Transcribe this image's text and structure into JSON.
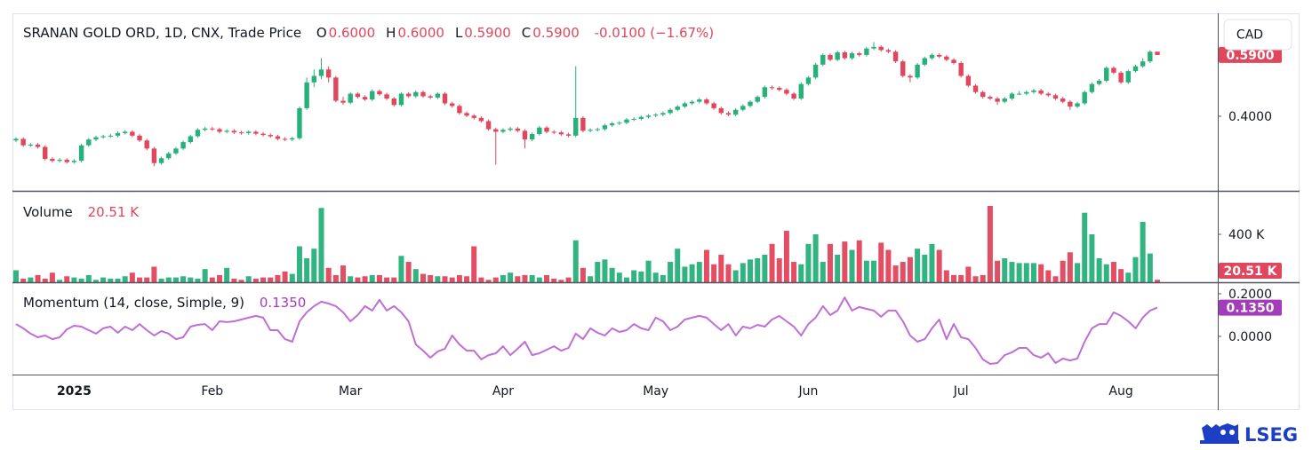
{
  "header": {
    "title": "SRANAN GOLD ORD, 1D, CNX, Trade Price",
    "ohlc": [
      {
        "key": "O",
        "value": "0.6000"
      },
      {
        "key": "H",
        "value": "0.6000"
      },
      {
        "key": "L",
        "value": "0.5900"
      },
      {
        "key": "C",
        "value": "0.5900"
      }
    ],
    "change": "-0.0100 (−1.67%)"
  },
  "currency": "CAD",
  "logo": "LSEG",
  "chart_data": [
    {
      "type": "candlestick",
      "up_color": "#26b07a",
      "down_color": "#e0465c",
      "categories": [
        null,
        null,
        null,
        null,
        null,
        null,
        null,
        null,
        "2025",
        null,
        null,
        null,
        null,
        null,
        null,
        null,
        null,
        null,
        null,
        null,
        null,
        null,
        null,
        null,
        null,
        null,
        null,
        "Feb",
        null,
        null,
        null,
        null,
        null,
        null,
        null,
        null,
        null,
        null,
        null,
        null,
        null,
        null,
        null,
        null,
        null,
        null,
        "Mar",
        null,
        null,
        null,
        null,
        null,
        null,
        null,
        null,
        null,
        null,
        null,
        null,
        null,
        null,
        null,
        null,
        null,
        null,
        null,
        null,
        "Apr",
        null,
        null,
        null,
        null,
        null,
        null,
        null,
        null,
        null,
        null,
        null,
        null,
        null,
        null,
        null,
        null,
        null,
        null,
        null,
        null,
        "May",
        null,
        null,
        null,
        null,
        null,
        null,
        null,
        null,
        null,
        null,
        null,
        null,
        null,
        null,
        null,
        null,
        null,
        null,
        null,
        null,
        "Jun",
        null,
        null,
        null,
        null,
        null,
        null,
        null,
        null,
        null,
        null,
        null,
        null,
        null,
        null,
        null,
        null,
        null,
        null,
        null,
        null,
        "Jul",
        null,
        null,
        null,
        null,
        null,
        null,
        null,
        null,
        null,
        null,
        null,
        null,
        null,
        null,
        null,
        null,
        null,
        null,
        null,
        null,
        null,
        "Aug",
        null,
        null,
        null,
        null,
        null
      ],
      "open": [
        0.325,
        0.33,
        0.31,
        0.312,
        0.305,
        0.268,
        0.262,
        0.265,
        0.258,
        0.262,
        0.31,
        0.328,
        0.335,
        0.338,
        0.34,
        0.348,
        0.352,
        0.34,
        0.325,
        0.3,
        0.255,
        0.27,
        0.285,
        0.3,
        0.32,
        0.338,
        0.358,
        0.362,
        0.36,
        0.352,
        0.355,
        0.35,
        0.348,
        0.352,
        0.346,
        0.342,
        0.338,
        0.33,
        0.328,
        0.332,
        0.425,
        0.505,
        0.525,
        0.545,
        0.52,
        0.448,
        0.442,
        0.47,
        0.46,
        0.452,
        0.478,
        0.468,
        0.455,
        0.435,
        0.47,
        0.462,
        0.475,
        0.462,
        0.458,
        0.47,
        0.44,
        0.432,
        0.41,
        0.402,
        0.395,
        0.385,
        0.36,
        0.352,
        0.358,
        0.362,
        0.355,
        0.328,
        0.345,
        0.365,
        0.352,
        0.35,
        0.344,
        0.34,
        0.395,
        0.355,
        0.358,
        0.36,
        0.372,
        0.378,
        0.38,
        0.39,
        0.392,
        0.398,
        0.402,
        0.405,
        0.41,
        0.42,
        0.43,
        0.44,
        0.445,
        0.452,
        0.44,
        0.425,
        0.41,
        0.405,
        0.42,
        0.432,
        0.445,
        0.46,
        0.49,
        0.488,
        0.482,
        0.47,
        0.455,
        0.5,
        0.52,
        0.56,
        0.59,
        0.575,
        0.598,
        0.58,
        0.595,
        0.59,
        0.61,
        0.615,
        0.605,
        0.6,
        0.57,
        0.525,
        0.52,
        0.56,
        0.58,
        0.59,
        0.585,
        0.575,
        0.565,
        0.525,
        0.495,
        0.475,
        0.46,
        0.455,
        0.445,
        0.455,
        0.47,
        0.47,
        0.475,
        0.48,
        0.47,
        0.465,
        0.455,
        0.445,
        0.43,
        0.44,
        0.475,
        0.5,
        0.51,
        0.55,
        0.535,
        0.505,
        0.54,
        0.555,
        0.57,
        0.6
      ],
      "high": [
        0.335,
        0.335,
        0.317,
        0.317,
        0.31,
        0.273,
        0.27,
        0.27,
        0.267,
        0.315,
        0.333,
        0.34,
        0.343,
        0.345,
        0.353,
        0.357,
        0.357,
        0.345,
        0.33,
        0.305,
        0.275,
        0.29,
        0.305,
        0.325,
        0.343,
        0.363,
        0.367,
        0.367,
        0.365,
        0.36,
        0.36,
        0.355,
        0.357,
        0.357,
        0.351,
        0.347,
        0.343,
        0.335,
        0.337,
        0.43,
        0.52,
        0.545,
        0.58,
        0.555,
        0.525,
        0.46,
        0.475,
        0.475,
        0.465,
        0.483,
        0.483,
        0.473,
        0.46,
        0.475,
        0.475,
        0.48,
        0.48,
        0.467,
        0.475,
        0.475,
        0.445,
        0.437,
        0.415,
        0.407,
        0.4,
        0.39,
        0.365,
        0.363,
        0.367,
        0.367,
        0.36,
        0.35,
        0.37,
        0.37,
        0.357,
        0.355,
        0.349,
        0.555,
        0.4,
        0.363,
        0.365,
        0.377,
        0.383,
        0.385,
        0.395,
        0.397,
        0.403,
        0.407,
        0.41,
        0.415,
        0.425,
        0.435,
        0.445,
        0.45,
        0.457,
        0.457,
        0.445,
        0.43,
        0.415,
        0.425,
        0.437,
        0.45,
        0.465,
        0.495,
        0.495,
        0.493,
        0.487,
        0.475,
        0.505,
        0.525,
        0.565,
        0.595,
        0.595,
        0.603,
        0.603,
        0.6,
        0.6,
        0.615,
        0.63,
        0.62,
        0.61,
        0.605,
        0.575,
        0.53,
        0.565,
        0.585,
        0.595,
        0.595,
        0.59,
        0.58,
        0.57,
        0.53,
        0.5,
        0.48,
        0.465,
        0.46,
        0.46,
        0.475,
        0.478,
        0.48,
        0.485,
        0.485,
        0.475,
        0.47,
        0.46,
        0.45,
        0.445,
        0.48,
        0.505,
        0.515,
        0.555,
        0.555,
        0.54,
        0.545,
        0.56,
        0.58,
        0.605,
        0.6
      ],
      "low": [
        0.32,
        0.305,
        0.305,
        0.3,
        0.263,
        0.257,
        0.257,
        0.253,
        0.253,
        0.257,
        0.305,
        0.323,
        0.33,
        0.333,
        0.335,
        0.343,
        0.335,
        0.32,
        0.295,
        0.245,
        0.25,
        0.265,
        0.28,
        0.295,
        0.315,
        0.333,
        0.353,
        0.355,
        0.347,
        0.347,
        0.345,
        0.343,
        0.343,
        0.341,
        0.337,
        0.333,
        0.325,
        0.323,
        0.323,
        0.327,
        0.42,
        0.49,
        0.515,
        0.505,
        0.443,
        0.435,
        0.437,
        0.455,
        0.447,
        0.447,
        0.463,
        0.45,
        0.43,
        0.43,
        0.457,
        0.457,
        0.457,
        0.453,
        0.453,
        0.435,
        0.427,
        0.405,
        0.397,
        0.39,
        0.38,
        0.355,
        0.25,
        0.347,
        0.353,
        0.35,
        0.3,
        0.323,
        0.34,
        0.347,
        0.345,
        0.339,
        0.335,
        0.335,
        0.35,
        0.35,
        0.353,
        0.355,
        0.367,
        0.373,
        0.375,
        0.385,
        0.387,
        0.393,
        0.397,
        0.4,
        0.405,
        0.415,
        0.425,
        0.435,
        0.44,
        0.435,
        0.42,
        0.405,
        0.4,
        0.4,
        0.415,
        0.427,
        0.44,
        0.455,
        0.483,
        0.477,
        0.465,
        0.45,
        0.45,
        0.495,
        0.515,
        0.555,
        0.57,
        0.57,
        0.575,
        0.575,
        0.585,
        0.585,
        0.605,
        0.6,
        0.595,
        0.565,
        0.52,
        0.505,
        0.515,
        0.555,
        0.575,
        0.58,
        0.57,
        0.56,
        0.52,
        0.49,
        0.47,
        0.455,
        0.45,
        0.435,
        0.44,
        0.45,
        0.465,
        0.465,
        0.47,
        0.465,
        0.46,
        0.45,
        0.44,
        0.42,
        0.425,
        0.435,
        0.47,
        0.495,
        0.505,
        0.53,
        0.5,
        0.5,
        0.535,
        0.55,
        0.565,
        0.59
      ],
      "close": [
        0.33,
        0.31,
        0.312,
        0.305,
        0.268,
        0.262,
        0.265,
        0.258,
        0.262,
        0.31,
        0.328,
        0.335,
        0.338,
        0.34,
        0.348,
        0.352,
        0.34,
        0.325,
        0.3,
        0.255,
        0.27,
        0.285,
        0.3,
        0.32,
        0.338,
        0.358,
        0.362,
        0.36,
        0.352,
        0.355,
        0.35,
        0.348,
        0.352,
        0.346,
        0.342,
        0.338,
        0.33,
        0.328,
        0.332,
        0.425,
        0.505,
        0.525,
        0.545,
        0.52,
        0.448,
        0.442,
        0.47,
        0.46,
        0.452,
        0.478,
        0.468,
        0.455,
        0.435,
        0.47,
        0.462,
        0.475,
        0.462,
        0.458,
        0.47,
        0.44,
        0.432,
        0.41,
        0.402,
        0.395,
        0.385,
        0.36,
        0.352,
        0.358,
        0.362,
        0.355,
        0.328,
        0.345,
        0.365,
        0.352,
        0.35,
        0.344,
        0.34,
        0.395,
        0.355,
        0.358,
        0.36,
        0.372,
        0.378,
        0.38,
        0.39,
        0.392,
        0.398,
        0.402,
        0.405,
        0.41,
        0.42,
        0.43,
        0.44,
        0.445,
        0.452,
        0.44,
        0.425,
        0.41,
        0.405,
        0.42,
        0.432,
        0.445,
        0.46,
        0.49,
        0.488,
        0.482,
        0.47,
        0.455,
        0.5,
        0.52,
        0.56,
        0.59,
        0.575,
        0.598,
        0.58,
        0.595,
        0.59,
        0.61,
        0.615,
        0.605,
        0.6,
        0.57,
        0.525,
        0.52,
        0.56,
        0.58,
        0.59,
        0.585,
        0.575,
        0.565,
        0.525,
        0.495,
        0.475,
        0.46,
        0.455,
        0.445,
        0.455,
        0.47,
        0.47,
        0.475,
        0.48,
        0.47,
        0.465,
        0.455,
        0.445,
        0.43,
        0.44,
        0.475,
        0.5,
        0.51,
        0.55,
        0.535,
        0.505,
        0.54,
        0.555,
        0.57,
        0.6,
        0.59
      ],
      "ylim": [
        0.169,
        0.719
      ],
      "yticks": [
        {
          "value": 0.4,
          "label": "0.4000"
        }
      ],
      "last_label": "0.5900"
    },
    {
      "type": "bar",
      "name": "Volume",
      "values": [
        100,
        30,
        40,
        60,
        30,
        80,
        20,
        50,
        40,
        30,
        60,
        20,
        40,
        30,
        30,
        50,
        80,
        40,
        40,
        130,
        30,
        40,
        40,
        50,
        40,
        30,
        110,
        40,
        60,
        120,
        30,
        20,
        50,
        30,
        40,
        40,
        60,
        90,
        70,
        300,
        200,
        280,
        620,
        120,
        60,
        140,
        50,
        40,
        50,
        60,
        60,
        40,
        40,
        220,
        170,
        110,
        70,
        60,
        50,
        50,
        40,
        60,
        50,
        300,
        40,
        20,
        40,
        60,
        80,
        50,
        60,
        60,
        40,
        60,
        30,
        20,
        40,
        350,
        120,
        50,
        170,
        190,
        120,
        80,
        40,
        100,
        90,
        180,
        80,
        60,
        170,
        280,
        130,
        150,
        170,
        270,
        150,
        230,
        150,
        100,
        160,
        190,
        200,
        230,
        320,
        200,
        430,
        170,
        150,
        320,
        400,
        170,
        320,
        230,
        340,
        270,
        350,
        180,
        180,
        330,
        270,
        140,
        170,
        210,
        280,
        230,
        320,
        270,
        100,
        60,
        60,
        130,
        50,
        60,
        637,
        180,
        200,
        170,
        160,
        160,
        160,
        150,
        100,
        50,
        180,
        250,
        160,
        580,
        400,
        200,
        150,
        170,
        110,
        80,
        210,
        504,
        240,
        20.51
      ],
      "ylim": [
        0,
        763
      ],
      "yticks": [
        {
          "value": 400,
          "label": "400 K"
        }
      ],
      "last_label": "20.51 K"
    },
    {
      "type": "line",
      "name": "Momentum (14, close, Simple, 9)",
      "color": "#c06ed6",
      "tag_color": "#a23cb8",
      "values": [
        0.058,
        0.038,
        0.013,
        -0.004,
        0.004,
        -0.013,
        -0.004,
        0.033,
        0.05,
        0.046,
        0.029,
        0.013,
        0.038,
        0.046,
        0.017,
        0.046,
        0.029,
        0.058,
        0.029,
        0.004,
        0.025,
        0.013,
        -0.013,
        -0.004,
        0.046,
        0.054,
        0.058,
        0.029,
        0.071,
        0.067,
        0.071,
        0.079,
        0.088,
        0.096,
        0.088,
        0.029,
        0.029,
        -0.013,
        -0.025,
        0.071,
        0.113,
        0.142,
        0.163,
        0.154,
        0.142,
        0.113,
        0.071,
        0.1,
        0.142,
        0.121,
        0.171,
        0.121,
        0.142,
        0.113,
        0.071,
        -0.038,
        -0.067,
        -0.1,
        -0.071,
        -0.058,
        0.004,
        -0.038,
        -0.067,
        -0.067,
        -0.108,
        -0.088,
        -0.079,
        -0.046,
        -0.088,
        -0.058,
        -0.025,
        -0.088,
        -0.079,
        -0.063,
        -0.046,
        -0.067,
        -0.054,
        0.013,
        -0.013,
        0.038,
        0.017,
        0.004,
        0.038,
        0.021,
        0.029,
        0.058,
        0.038,
        0.029,
        0.088,
        0.071,
        0.029,
        0.046,
        0.079,
        0.088,
        0.096,
        0.088,
        0.058,
        0.029,
        0.058,
        0.004,
        0.046,
        0.038,
        0.054,
        0.046,
        0.079,
        0.096,
        0.071,
        0.046,
        0.004,
        0.058,
        0.088,
        0.142,
        0.1,
        0.121,
        0.183,
        0.121,
        0.138,
        0.129,
        0.121,
        0.092,
        0.121,
        0.121,
        0.071,
        0.004,
        -0.025,
        -0.013,
        0.038,
        0.079,
        -0.013,
        0.058,
        -0.004,
        -0.013,
        -0.054,
        -0.108,
        -0.129,
        -0.125,
        -0.088,
        -0.075,
        -0.054,
        -0.054,
        -0.088,
        -0.1,
        -0.079,
        -0.125,
        -0.104,
        -0.113,
        -0.104,
        -0.025,
        0.038,
        0.058,
        0.058,
        0.113,
        0.096,
        0.071,
        0.038,
        0.088,
        0.121,
        0.135
      ],
      "ylim": [
        -0.179,
        0.254
      ],
      "yticks": [
        {
          "value": 0,
          "label": "0.0000"
        },
        {
          "value": 0.2,
          "label": "0.2000"
        }
      ],
      "last_label": "0.1350"
    }
  ]
}
